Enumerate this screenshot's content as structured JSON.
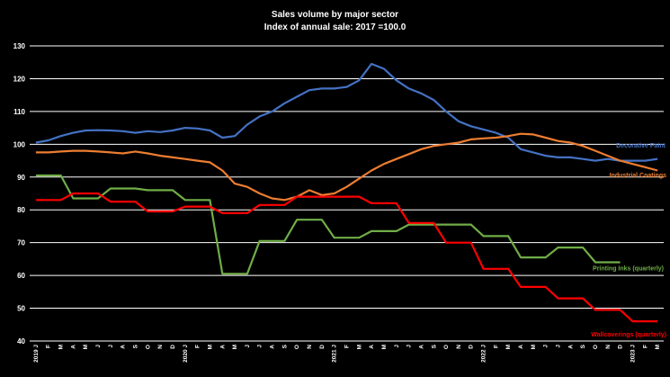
{
  "chart_data": {
    "type": "line",
    "title": "Sales volume by major sector",
    "subtitle": "Index of annual sale: 2017 =100.0",
    "ylim": [
      40,
      130
    ],
    "yticks": [
      40,
      50,
      60,
      70,
      80,
      90,
      100,
      110,
      120,
      130
    ],
    "grid": true,
    "x": [
      "2019 J",
      "F",
      "M",
      "A",
      "M",
      "J",
      "J",
      "A",
      "S",
      "O",
      "N",
      "D",
      "2020 J",
      "F",
      "M",
      "A",
      "M",
      "J",
      "J",
      "A",
      "S",
      "O",
      "N",
      "D",
      "2021 J",
      "F",
      "M",
      "A",
      "M",
      "J",
      "J",
      "A",
      "S",
      "O",
      "N",
      "D",
      "2022 J",
      "F",
      "M",
      "A",
      "M",
      "J",
      "J",
      "A",
      "S",
      "O",
      "N",
      "D",
      "2023 J",
      "F",
      "M"
    ],
    "series": [
      {
        "name": "Decorative Paint",
        "color": "#4472C4",
        "values": [
          100.5,
          101.2,
          102.5,
          103.5,
          104.2,
          104.3,
          104.2,
          104.0,
          103.5,
          104.0,
          103.7,
          104.2,
          105.0,
          104.8,
          104.2,
          102.0,
          102.5,
          106.0,
          108.5,
          110.0,
          112.5,
          114.5,
          116.5,
          117.0,
          117.0,
          117.5,
          119.5,
          124.5,
          123.0,
          119.5,
          117.0,
          115.5,
          113.5,
          110.0,
          107.0,
          105.5,
          104.5,
          103.5,
          102.0,
          98.5,
          97.5,
          96.5,
          96.0,
          96.0,
          95.5,
          95.0,
          95.5,
          95.0,
          95.0,
          95.0,
          95.5
        ]
      },
      {
        "name": "Industrial Coatings",
        "color": "#ED7D31",
        "values": [
          97.5,
          97.5,
          97.8,
          98.0,
          98.0,
          97.8,
          97.5,
          97.2,
          97.8,
          97.2,
          96.5,
          96.0,
          95.5,
          95.0,
          94.5,
          92.0,
          88.0,
          87.0,
          85.0,
          83.5,
          83.0,
          84.0,
          86.0,
          84.5,
          85.0,
          87.0,
          89.5,
          92.0,
          94.0,
          95.5,
          97.0,
          98.5,
          99.5,
          100.0,
          100.5,
          101.5,
          101.8,
          102.0,
          102.5,
          103.2,
          103.0,
          102.0,
          101.0,
          100.5,
          99.5,
          98.0,
          96.5,
          95.0,
          94.0,
          93.0,
          92.0
        ]
      },
      {
        "name": "Printing Inks (quarterly)",
        "color": "#70AD47",
        "values": [
          90.5,
          90.5,
          90.5,
          83.5,
          83.5,
          83.5,
          86.5,
          86.5,
          86.5,
          86.0,
          86.0,
          86.0,
          83.0,
          83.0,
          83.0,
          60.5,
          60.5,
          60.5,
          70.5,
          70.5,
          70.5,
          77.0,
          77.0,
          77.0,
          71.5,
          71.5,
          71.5,
          73.5,
          73.5,
          73.5,
          75.5,
          75.5,
          75.5,
          75.5,
          75.5,
          75.5,
          72.0,
          72.0,
          72.0,
          65.5,
          65.5,
          65.5,
          68.5,
          68.5,
          68.5,
          64.0,
          64.0,
          64.0,
          null,
          null,
          null
        ]
      },
      {
        "name": "Wallcoverings (quarterly)",
        "color": "#FF0000",
        "values": [
          83.0,
          83.0,
          83.0,
          85.0,
          85.0,
          85.0,
          82.5,
          82.5,
          82.5,
          79.5,
          79.5,
          79.5,
          81.0,
          81.0,
          81.0,
          79.0,
          79.0,
          79.0,
          81.5,
          81.5,
          81.5,
          84.0,
          84.0,
          84.0,
          84.0,
          84.0,
          84.0,
          82.0,
          82.0,
          82.0,
          76.0,
          76.0,
          76.0,
          70.0,
          70.0,
          70.0,
          62.0,
          62.0,
          62.0,
          56.5,
          56.5,
          56.5,
          53.0,
          53.0,
          53.0,
          49.5,
          49.5,
          49.5,
          46.0,
          46.0,
          46.0
        ]
      }
    ]
  }
}
